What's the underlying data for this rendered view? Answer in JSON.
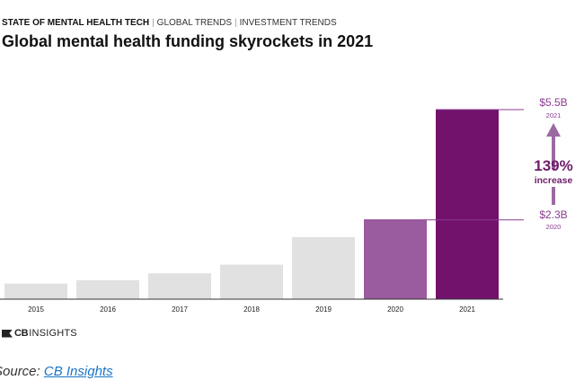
{
  "breadcrumb": {
    "main": "STATE OF MENTAL HEALTH TECH",
    "item1": "GLOBAL TRENDS",
    "item2": "INVESTMENT TRENDS"
  },
  "title": "Global mental health funding skyrockets in 2021",
  "colors": {
    "grey_bar": "#e1e1e1",
    "bar_2020": "#9b5b9f",
    "bar_2021": "#72126c",
    "accent": "#8b3b8f",
    "dark_accent": "#6e1d6a"
  },
  "chart_data": {
    "type": "bar",
    "categories": [
      "2015",
      "2016",
      "2017",
      "2018",
      "2019",
      "2020",
      "2021"
    ],
    "values": [
      0.45,
      0.55,
      0.75,
      1.0,
      1.8,
      2.3,
      5.5
    ],
    "unit": "$B",
    "ylim": [
      0,
      5.5
    ],
    "grid": false,
    "annotations": {
      "top_value": "$5.5B",
      "top_year": "2021",
      "mid_value": "$2.3B",
      "mid_year": "2020",
      "pct": "139%",
      "pct_label": "increase"
    }
  },
  "logo": {
    "cb": "CB",
    "insights": "INSIGHTS"
  },
  "source": {
    "prefix": "Source: ",
    "link": "CB Insights"
  }
}
